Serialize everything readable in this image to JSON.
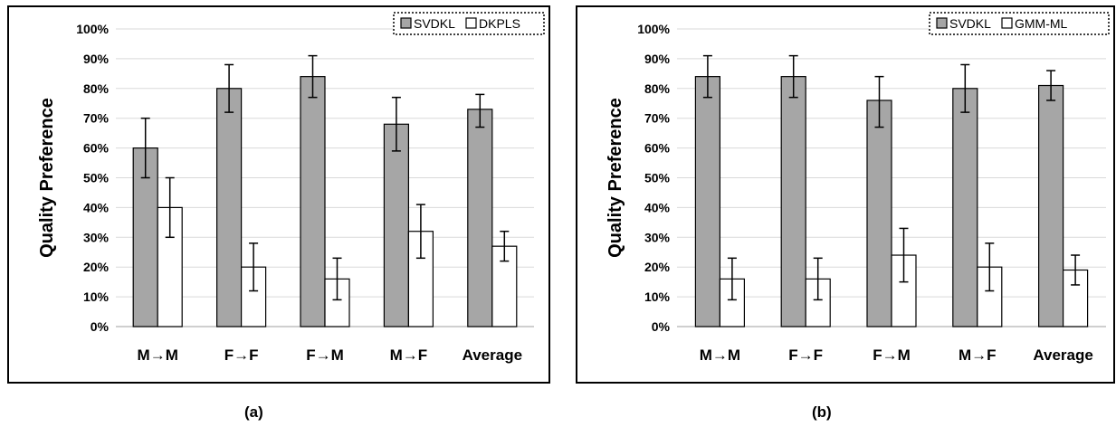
{
  "chart_data": [
    {
      "type": "bar",
      "ylabel": "Quality Preference",
      "categories": [
        "M→M",
        "F→F",
        "F→M",
        "M→F",
        "Average"
      ],
      "yticks": [
        "0%",
        "10%",
        "20%",
        "30%",
        "40%",
        "50%",
        "60%",
        "70%",
        "80%",
        "90%",
        "100%"
      ],
      "ylim": [
        0,
        100
      ],
      "grid": true,
      "legend_position": "top-right",
      "series": [
        {
          "name": "SVDKL",
          "color": "#a6a6a6",
          "values": [
            60,
            80,
            84,
            68,
            73
          ],
          "err_low": [
            50,
            72,
            77,
            59,
            67
          ],
          "err_high": [
            70,
            88,
            91,
            77,
            78
          ]
        },
        {
          "name": "DKPLS",
          "color": "#ffffff",
          "values": [
            40,
            20,
            16,
            32,
            27
          ],
          "err_low": [
            30,
            12,
            9,
            23,
            22
          ],
          "err_high": [
            50,
            28,
            23,
            41,
            32
          ]
        }
      ],
      "caption": "(a)"
    },
    {
      "type": "bar",
      "ylabel": "Quality Preference",
      "categories": [
        "M→M",
        "F→F",
        "F→M",
        "M→F",
        "Average"
      ],
      "yticks": [
        "0%",
        "10%",
        "20%",
        "30%",
        "40%",
        "50%",
        "60%",
        "70%",
        "80%",
        "90%",
        "100%"
      ],
      "ylim": [
        0,
        100
      ],
      "grid": true,
      "legend_position": "top-right",
      "series": [
        {
          "name": "SVDKL",
          "color": "#a6a6a6",
          "values": [
            84,
            84,
            76,
            80,
            81
          ],
          "err_low": [
            77,
            77,
            67,
            72,
            76
          ],
          "err_high": [
            91,
            91,
            84,
            88,
            86
          ]
        },
        {
          "name": "GMM-ML",
          "color": "#ffffff",
          "values": [
            16,
            16,
            24,
            20,
            19
          ],
          "err_low": [
            9,
            9,
            15,
            12,
            14
          ],
          "err_high": [
            23,
            23,
            33,
            28,
            24
          ]
        }
      ],
      "caption": "(b)"
    }
  ]
}
